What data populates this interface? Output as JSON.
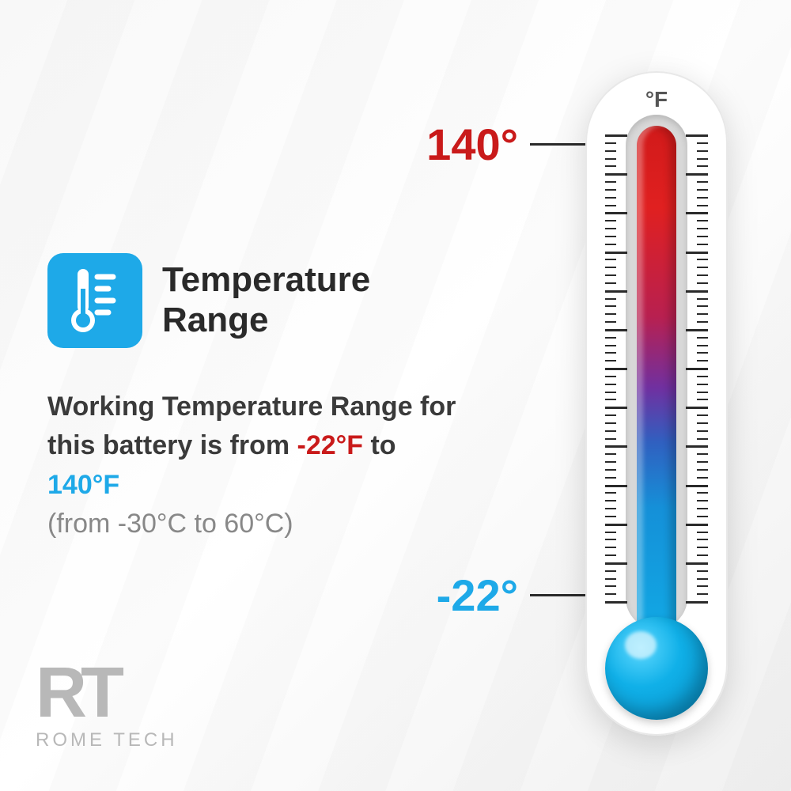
{
  "infographic": {
    "type": "infographic",
    "title": "Temperature\nRange",
    "icon_bg_color": "#1ea9e8",
    "description_prefix": "Working Temperature Range for this battery is from ",
    "low_temp_f": "-22°F",
    "desc_to": " to ",
    "high_temp_f": "140°F",
    "description_sub": "(from -30°C to 60°C)",
    "text_color": "#3a3a3a",
    "low_color": "#c91a1a",
    "high_color": "#1ea9e8"
  },
  "thermometer": {
    "unit": "°F",
    "high_label": "140°",
    "low_label": "-22°",
    "high_label_color": "#c91a1a",
    "low_label_color": "#1ea9e8",
    "body_color": "#ffffff",
    "tube_gradient_stops": [
      "#d11a1a",
      "#b82050",
      "#7030a0",
      "#3060c0",
      "#10b0e8"
    ],
    "bulb_color": "#10b0e8",
    "tick_color": "#2a2a2a",
    "major_tick_count": 12,
    "minor_per_major": 4
  },
  "logo": {
    "mark": "RT",
    "text": "ROME TECH",
    "color": "#b8b8b8"
  },
  "background_color": "#f8f8f8"
}
